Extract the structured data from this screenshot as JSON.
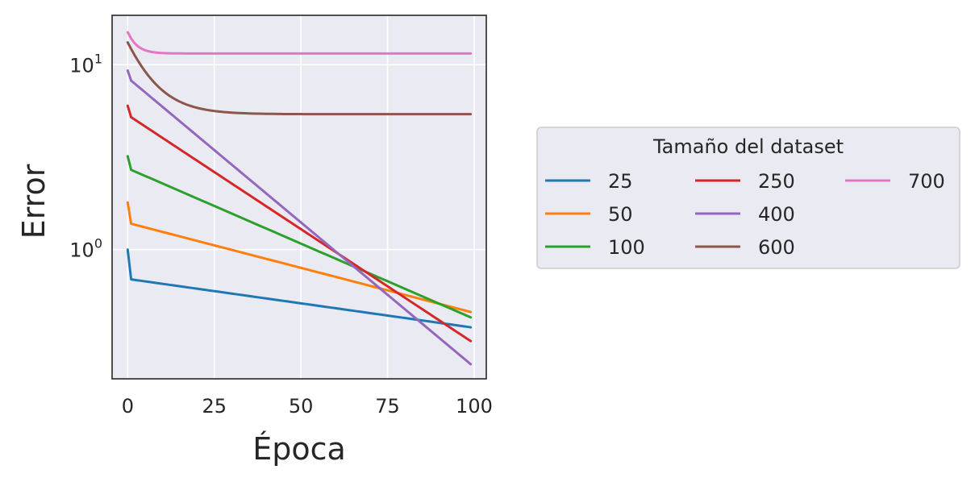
{
  "chart_data": {
    "type": "line",
    "xlabel": "Época",
    "ylabel": "Error",
    "xlim": [
      -4.5,
      103.5
    ],
    "ylim": [
      0.2,
      18.5
    ],
    "yscale": "log",
    "x_ticks": [
      {
        "value": 0,
        "label": "0"
      },
      {
        "value": 25,
        "label": "25"
      },
      {
        "value": 50,
        "label": "50"
      },
      {
        "value": 75,
        "label": "75"
      },
      {
        "value": 100,
        "label": "100"
      }
    ],
    "y_ticks": [
      {
        "value": 1,
        "base": "10",
        "exp": "0"
      },
      {
        "value": 10,
        "base": "10",
        "exp": "1"
      }
    ],
    "grid": true,
    "legend": {
      "title": "Tamaño del dataset",
      "placement": "right",
      "columns": 3
    },
    "series": [
      {
        "name": "25",
        "color": "#1f77b4",
        "start": 1.0,
        "knee": 0.69,
        "end": 0.38,
        "settle": 0
      },
      {
        "name": "50",
        "color": "#ff7f0e",
        "start": 1.8,
        "knee": 1.38,
        "end": 0.46,
        "settle": 0
      },
      {
        "name": "100",
        "color": "#2ca02c",
        "start": 3.2,
        "knee": 2.7,
        "end": 0.43,
        "settle": 0
      },
      {
        "name": "250",
        "color": "#d62728",
        "start": 6.0,
        "knee": 5.2,
        "end": 0.32,
        "settle": 0
      },
      {
        "name": "400",
        "color": "#9467bd",
        "start": 9.3,
        "knee": 8.2,
        "end": 0.24,
        "settle": 0
      },
      {
        "name": "600",
        "color": "#8c564b",
        "start": 13.2,
        "knee": 13.2,
        "end": 5.4,
        "settle": 7
      },
      {
        "name": "700",
        "color": "#e377c2",
        "start": 15.0,
        "knee": 15.0,
        "end": 11.5,
        "settle": 2.5
      }
    ]
  }
}
